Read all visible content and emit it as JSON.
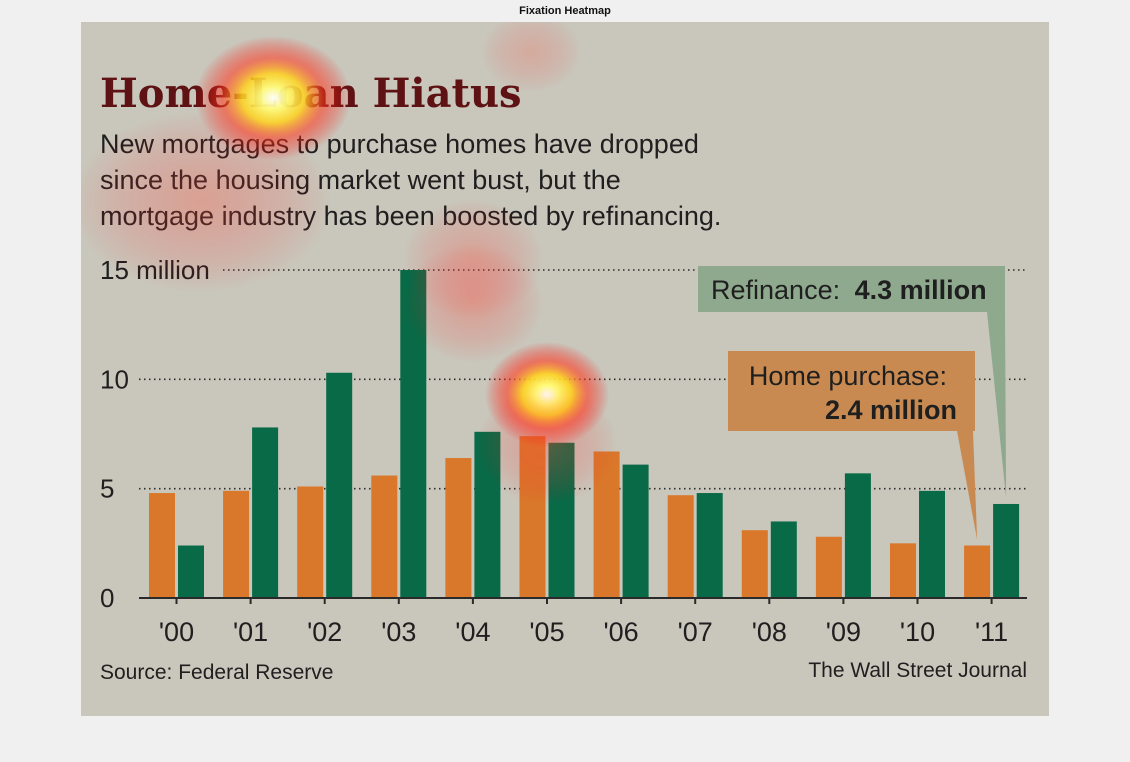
{
  "window": {
    "title": "Fixation Heatmap"
  },
  "colors": {
    "background": "#c9c6bb",
    "home_purchase": "#d9772b",
    "refinance": "#086a47",
    "title": "#5e1214",
    "text": "#1f1f1f",
    "refi_callout": "#8fa98f",
    "purchase_callout": "#c98a52"
  },
  "chart_data": {
    "type": "bar",
    "title": "Home-Loan Hiatus",
    "subtitle_lines": [
      "New mortgages to purchase homes have dropped",
      "since the housing market went bust, but the",
      "mortgage industry has been boosted by refinancing."
    ],
    "categories": [
      "'00",
      "'01",
      "'02",
      "'03",
      "'04",
      "'05",
      "'06",
      "'07",
      "'08",
      "'09",
      "'10",
      "'11"
    ],
    "series": [
      {
        "key": "home_purchase",
        "values": [
          4.8,
          4.9,
          5.1,
          5.6,
          6.4,
          7.4,
          6.7,
          4.7,
          3.1,
          2.8,
          2.5,
          2.4
        ]
      },
      {
        "key": "refinance",
        "values": [
          2.4,
          7.8,
          10.3,
          15.0,
          7.6,
          7.1,
          6.1,
          4.8,
          3.5,
          5.7,
          4.9,
          4.3
        ]
      }
    ],
    "ylim": [
      0,
      15
    ],
    "yticks": [
      {
        "value": 0,
        "label": "0"
      },
      {
        "value": 5,
        "label": "5"
      },
      {
        "value": 10,
        "label": "10"
      },
      {
        "value": 15,
        "label": "15 million"
      }
    ],
    "grid": "dotted horizontal",
    "annotations": {
      "refinance": {
        "label": "Refinance:",
        "value": "4.3 million"
      },
      "home_purchase": {
        "label": "Home purchase:",
        "value": "2.4 million"
      }
    },
    "source": "Source: Federal Reserve",
    "credit": "The Wall Street Journal"
  },
  "overlay": {
    "type": "fixation heatmap",
    "hotspots": [
      {
        "x_category": "'05",
        "y_value": 9.3,
        "intensity": 1.0
      },
      {
        "x_category": "'04",
        "y_value": 13.5,
        "intensity": 0.55
      },
      {
        "x_category": "'05",
        "y_value": 7.0,
        "intensity": 0.55
      },
      {
        "x_category": "'04",
        "y_value": 15.5,
        "intensity": 0.5
      }
    ]
  }
}
